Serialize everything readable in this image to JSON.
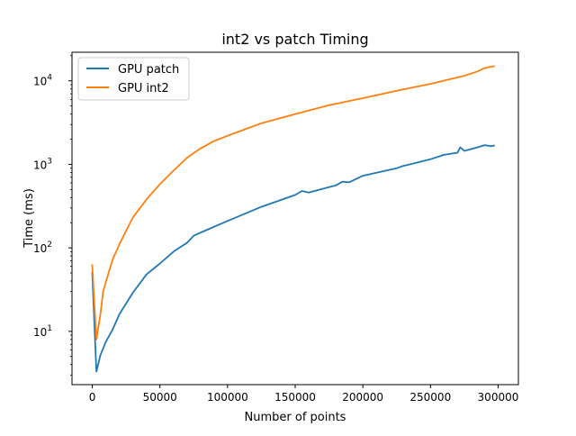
{
  "chart_data": {
    "type": "line",
    "title": "int2 vs patch Timing",
    "xlabel": "Number of points",
    "ylabel": "Time (ms)",
    "x_scale": "linear",
    "y_scale": "log",
    "xlim": [
      -15000,
      315000
    ],
    "ylim": [
      2.3,
      22000
    ],
    "x_ticks": [
      {
        "value": 0,
        "label": "0"
      },
      {
        "value": 50000,
        "label": "50000"
      },
      {
        "value": 100000,
        "label": "100000"
      },
      {
        "value": 150000,
        "label": "150000"
      },
      {
        "value": 200000,
        "label": "200000"
      },
      {
        "value": 250000,
        "label": "250000"
      },
      {
        "value": 300000,
        "label": "300000"
      }
    ],
    "y_ticks": [
      {
        "value": 10,
        "base": "10",
        "exp": "1"
      },
      {
        "value": 100,
        "base": "10",
        "exp": "2"
      },
      {
        "value": 1000,
        "base": "10",
        "exp": "3"
      },
      {
        "value": 10000,
        "base": "10",
        "exp": "4"
      }
    ],
    "grid": false,
    "legend_position": "top-left",
    "series": [
      {
        "name": "GPU patch",
        "color": "#1f77b4",
        "points": [
          [
            0,
            50
          ],
          [
            3000,
            3.3
          ],
          [
            6000,
            5.2
          ],
          [
            10000,
            7.5
          ],
          [
            15000,
            10.5
          ],
          [
            20000,
            16
          ],
          [
            30000,
            29
          ],
          [
            40000,
            48
          ],
          [
            50000,
            65
          ],
          [
            60000,
            90
          ],
          [
            70000,
            115
          ],
          [
            75000,
            140
          ],
          [
            85000,
            165
          ],
          [
            100000,
            210
          ],
          [
            125000,
            310
          ],
          [
            150000,
            430
          ],
          [
            155000,
            480
          ],
          [
            160000,
            460
          ],
          [
            180000,
            560
          ],
          [
            185000,
            620
          ],
          [
            190000,
            610
          ],
          [
            200000,
            730
          ],
          [
            225000,
            900
          ],
          [
            230000,
            960
          ],
          [
            235000,
            1000
          ],
          [
            250000,
            1150
          ],
          [
            260000,
            1300
          ],
          [
            270000,
            1380
          ],
          [
            272000,
            1600
          ],
          [
            275000,
            1450
          ],
          [
            285000,
            1600
          ],
          [
            290000,
            1700
          ],
          [
            295000,
            1650
          ],
          [
            297000,
            1680
          ]
        ]
      },
      {
        "name": "GPU int2",
        "color": "#ff7f0e",
        "points": [
          [
            0,
            62
          ],
          [
            3000,
            8
          ],
          [
            6000,
            16
          ],
          [
            8000,
            30
          ],
          [
            12000,
            50
          ],
          [
            15000,
            72
          ],
          [
            20000,
            110
          ],
          [
            25000,
            160
          ],
          [
            30000,
            230
          ],
          [
            40000,
            380
          ],
          [
            50000,
            580
          ],
          [
            60000,
            840
          ],
          [
            70000,
            1200
          ],
          [
            80000,
            1550
          ],
          [
            90000,
            1900
          ],
          [
            100000,
            2200
          ],
          [
            125000,
            3100
          ],
          [
            150000,
            4000
          ],
          [
            175000,
            5100
          ],
          [
            200000,
            6200
          ],
          [
            225000,
            7600
          ],
          [
            250000,
            9200
          ],
          [
            270000,
            11000
          ],
          [
            275000,
            11500
          ],
          [
            285000,
            13000
          ],
          [
            290000,
            14200
          ],
          [
            297000,
            15000
          ]
        ]
      }
    ]
  }
}
